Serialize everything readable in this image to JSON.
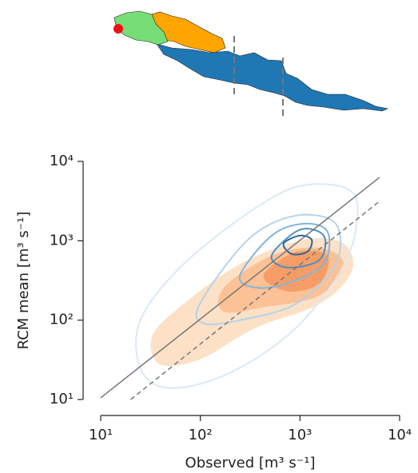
{
  "chart_data": {
    "type": "density",
    "xlabel": "Observed [m³ s⁻¹]",
    "ylabel": "RCM mean [m³ s⁻¹]",
    "xscale": "log",
    "yscale": "log",
    "xlim": [
      10,
      10000
    ],
    "ylim": [
      10,
      10000
    ],
    "xticks": [
      {
        "value": 10,
        "label": "10¹"
      },
      {
        "value": 100,
        "label": "10²"
      },
      {
        "value": 1000,
        "label": "10³"
      },
      {
        "value": 10000,
        "label": "10⁴"
      }
    ],
    "yticks": [
      {
        "value": 10,
        "label": "10¹"
      },
      {
        "value": 100,
        "label": "10²"
      },
      {
        "value": 1000,
        "label": "10³"
      },
      {
        "value": 10000,
        "label": "10⁴"
      }
    ],
    "filled_contours": [
      {
        "color": "#fdd9b8",
        "x": [
          33,
          68,
          250,
          1090,
          2740,
          3300,
          1570,
          360,
          99,
          39
        ],
        "y": [
          64,
          160,
          510,
          1030,
          920,
          410,
          160,
          80,
          32,
          28
        ]
      },
      {
        "color": "#fbb987",
        "x": [
          172,
          520,
          1570,
          2740,
          1570,
          430,
          172
        ],
        "y": [
          257,
          650,
          815,
          510,
          205,
          145,
          128
        ]
      },
      {
        "color": "#f4945b",
        "x": [
          430,
          905,
          1890,
          1570,
          750
        ],
        "y": [
          365,
          720,
          650,
          290,
          230
        ]
      }
    ],
    "line_contours": [
      {
        "color": "#dbe9f6",
        "x": [
          25,
          68,
          360,
          1090,
          3300,
          3600,
          2280,
          750,
          172,
          47,
          25
        ],
        "y": [
          100,
          510,
          2600,
          5000,
          4150,
          1300,
          325,
          64,
          20,
          14,
          25
        ]
      },
      {
        "color": "#b3d2ea",
        "x": [
          99,
          300,
          905,
          2280,
          2280,
          905,
          250,
          108
        ],
        "y": [
          160,
          1030,
          2070,
          1640,
          510,
          160,
          100,
          91
        ]
      },
      {
        "color": "#80b6da",
        "x": [
          250,
          520,
          1090,
          1890,
          1730,
          750,
          360
        ],
        "y": [
          365,
          1160,
          1640,
          1300,
          510,
          290,
          257
        ]
      },
      {
        "color": "#4a8fc4",
        "x": [
          520,
          990,
          1730,
          1570,
          750
        ],
        "y": [
          650,
          1370,
          1160,
          575,
          460
        ]
      },
      {
        "color": "#2b6497",
        "x": [
          685,
          990,
          1310,
          1190,
          830
        ],
        "y": [
          920,
          1160,
          1030,
          730,
          680
        ]
      }
    ],
    "lines": [
      {
        "color": "#777777",
        "dash": false,
        "x": [
          10,
          6300
        ],
        "y": [
          10.5,
          6300
        ]
      },
      {
        "color": "#777777",
        "dash": true,
        "x": [
          20,
          6300
        ],
        "y": [
          10,
          3150
        ]
      }
    ]
  }
}
